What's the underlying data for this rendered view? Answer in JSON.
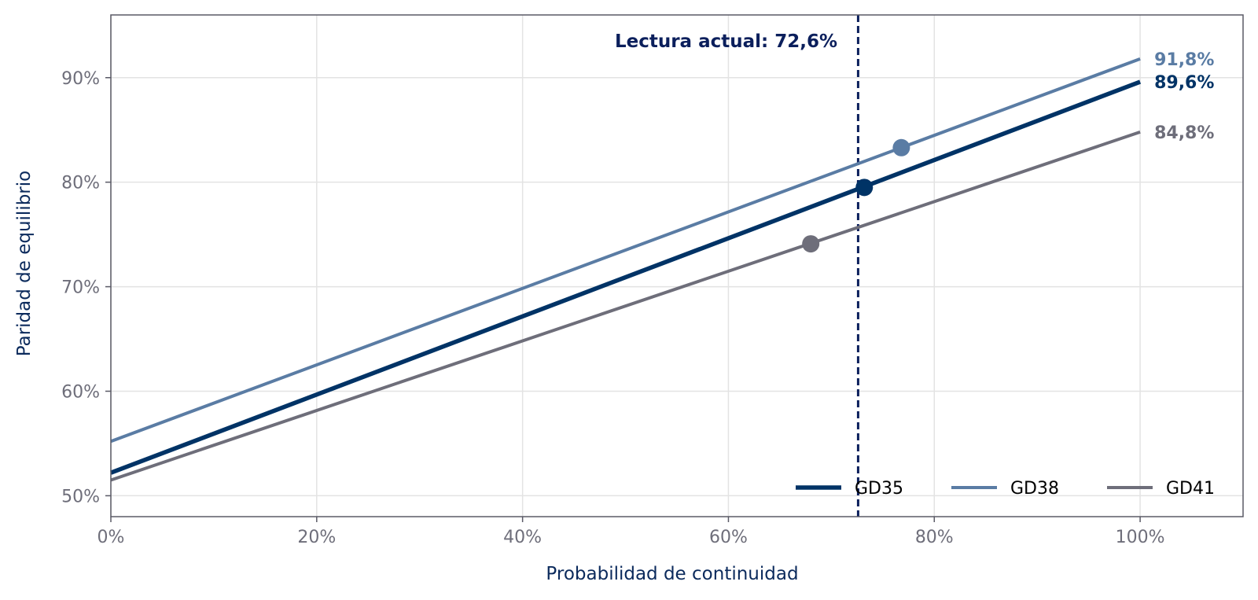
{
  "chart_data": {
    "type": "line",
    "title": "",
    "xlabel": "Probabilidad de continuidad",
    "ylabel": "Paridad de equilibrio",
    "xlim": [
      0,
      110
    ],
    "ylim": [
      48,
      96
    ],
    "x_ticks": [
      0,
      20,
      40,
      60,
      80,
      100
    ],
    "x_tick_labels": [
      "0%",
      "20%",
      "40%",
      "60%",
      "80%",
      "100%"
    ],
    "y_ticks": [
      50,
      60,
      70,
      80,
      90
    ],
    "y_tick_labels": [
      "50%",
      "60%",
      "70%",
      "80%",
      "90%"
    ],
    "grid": true,
    "legend_position": "bottom-right",
    "vline": {
      "x": 72.6,
      "label": "Lectura actual: 72,6%",
      "color": "#0b1f5c"
    },
    "series": [
      {
        "name": "GD35",
        "color": "#003366",
        "width": "thick",
        "x": [
          0,
          100
        ],
        "y": [
          52.2,
          89.6
        ],
        "end_label": "89,6%",
        "marker": {
          "x": 73.2,
          "y": 79.5
        }
      },
      {
        "name": "GD38",
        "color": "#5a7ca4",
        "width": "normal",
        "x": [
          0,
          100
        ],
        "y": [
          55.2,
          91.8
        ],
        "end_label": "91,8%",
        "marker": {
          "x": 76.8,
          "y": 83.3
        }
      },
      {
        "name": "GD41",
        "color": "#6e6e7a",
        "width": "normal",
        "x": [
          0,
          100
        ],
        "y": [
          51.5,
          84.8
        ],
        "end_label": "84,8%",
        "marker": {
          "x": 68.0,
          "y": 74.1
        }
      }
    ]
  },
  "colors": {
    "axis": "#5a5a66",
    "tick_text": "#6e6e7a",
    "axis_title": "#0b2a5c",
    "grid": "#e3e3e3"
  }
}
